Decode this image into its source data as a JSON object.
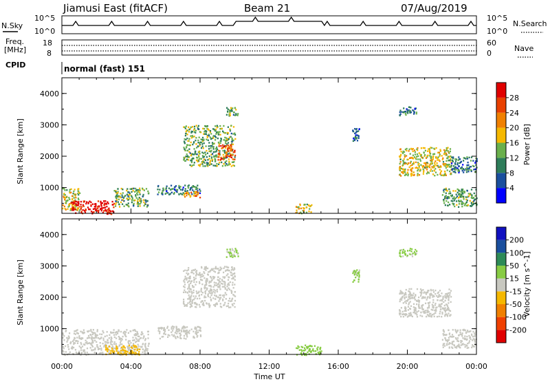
{
  "header": {
    "station": "Jiamusi East (fitACF)",
    "beam": "Beam 21",
    "date": "07/Aug/2019"
  },
  "noise_panel": {
    "left_label": "N.Sky",
    "right_label": "N.Search",
    "left_top": "10^5",
    "left_bottom": "10^0",
    "right_top": "10^5",
    "right_bottom": "10^0"
  },
  "freq_panel": {
    "left_label_1": "Freq.",
    "left_label_2": "[MHz]",
    "left_top": "18",
    "left_bottom": "8",
    "right_label": "Nave",
    "right_top": "60",
    "right_bottom": "0"
  },
  "cpid_panel": {
    "label": "CPID",
    "mode": "normal (fast) 151"
  },
  "colors": {
    "power": [
      "#0000ff",
      "#1a4f9e",
      "#2e7d5a",
      "#6ab04c",
      "#f5b800",
      "#f08000",
      "#e84000",
      "#e00000"
    ],
    "velocity": [
      "#e00000",
      "#f04000",
      "#f08000",
      "#f5b800",
      "#c8c8c0",
      "#88cc44",
      "#2e8b57",
      "#1a4f9e",
      "#1010c0"
    ]
  },
  "chart_data": [
    {
      "type": "heatmap",
      "parameter": "Power",
      "ylabel": "Slant Range [km]",
      "xlabel": "Time UT",
      "ylim": [
        180,
        4500
      ],
      "xlim": [
        0,
        24
      ],
      "x_ticks": [
        "00:00",
        "04:00",
        "08:00",
        "12:00",
        "16:00",
        "20:00",
        "00:00"
      ],
      "y_ticks": [
        "1000",
        "2000",
        "3000",
        "4000"
      ],
      "colorbar": {
        "label": "Power [dB]",
        "ticks": [
          "4",
          "8",
          "12",
          "16",
          "20",
          "24",
          "28"
        ],
        "range": [
          0,
          30
        ]
      },
      "echo_regions": [
        {
          "t": [
            0.0,
            1.0
          ],
          "r": [
            300,
            1000
          ],
          "value": 16
        },
        {
          "t": [
            0.5,
            3.0
          ],
          "r": [
            180,
            600
          ],
          "value": 28
        },
        {
          "t": [
            3.0,
            5.0
          ],
          "r": [
            400,
            1000
          ],
          "value": 12
        },
        {
          "t": [
            5.5,
            8.0
          ],
          "r": [
            800,
            1100
          ],
          "value": 8
        },
        {
          "t": [
            7.0,
            8.0
          ],
          "r": [
            700,
            900
          ],
          "value": 20
        },
        {
          "t": [
            7.0,
            10.0
          ],
          "r": [
            1700,
            3000
          ],
          "value": 12
        },
        {
          "t": [
            9.0,
            10.0
          ],
          "r": [
            1900,
            2400
          ],
          "value": 24
        },
        {
          "t": [
            9.5,
            10.2
          ],
          "r": [
            3300,
            3600
          ],
          "value": 12
        },
        {
          "t": [
            13.5,
            14.5
          ],
          "r": [
            200,
            500
          ],
          "value": 16
        },
        {
          "t": [
            16.8,
            17.2
          ],
          "r": [
            2500,
            2900
          ],
          "value": 8
        },
        {
          "t": [
            19.5,
            22.5
          ],
          "r": [
            1400,
            2300
          ],
          "value": 16
        },
        {
          "t": [
            19.5,
            20.5
          ],
          "r": [
            3300,
            3600
          ],
          "value": 8
        },
        {
          "t": [
            22.5,
            24.0
          ],
          "r": [
            1500,
            2000
          ],
          "value": 8
        },
        {
          "t": [
            22.0,
            24.0
          ],
          "r": [
            400,
            1000
          ],
          "value": 12
        }
      ]
    },
    {
      "type": "heatmap",
      "parameter": "Velocity",
      "ylabel": "Slant Range [km]",
      "xlabel": "Time UT",
      "ylim": [
        180,
        4500
      ],
      "xlim": [
        0,
        24
      ],
      "x_ticks": [
        "00:00",
        "04:00",
        "08:00",
        "12:00",
        "16:00",
        "20:00",
        "00:00"
      ],
      "y_ticks": [
        "1000",
        "2000",
        "3000",
        "4000"
      ],
      "colorbar": {
        "label": "Velocity [m s^-1]",
        "ticks": [
          "200",
          "100",
          "50",
          "15",
          "-15",
          "-50",
          "-100",
          "-200"
        ],
        "range": [
          -250,
          250
        ]
      },
      "echo_regions": [
        {
          "t": [
            0.0,
            5.0
          ],
          "r": [
            180,
            1000
          ],
          "value": 0
        },
        {
          "t": [
            2.5,
            4.5
          ],
          "r": [
            180,
            500
          ],
          "value": -50
        },
        {
          "t": [
            5.5,
            8.0
          ],
          "r": [
            700,
            1100
          ],
          "value": 0
        },
        {
          "t": [
            7.0,
            10.0
          ],
          "r": [
            1700,
            3000
          ],
          "value": 0
        },
        {
          "t": [
            9.5,
            10.2
          ],
          "r": [
            3300,
            3600
          ],
          "value": 40
        },
        {
          "t": [
            13.5,
            15.0
          ],
          "r": [
            180,
            500
          ],
          "value": 60
        },
        {
          "t": [
            16.8,
            17.2
          ],
          "r": [
            2500,
            2900
          ],
          "value": 40
        },
        {
          "t": [
            19.5,
            22.5
          ],
          "r": [
            1400,
            2300
          ],
          "value": 0
        },
        {
          "t": [
            19.5,
            20.5
          ],
          "r": [
            3300,
            3600
          ],
          "value": 40
        },
        {
          "t": [
            22.0,
            24.0
          ],
          "r": [
            400,
            1000
          ],
          "value": 0
        }
      ]
    }
  ]
}
